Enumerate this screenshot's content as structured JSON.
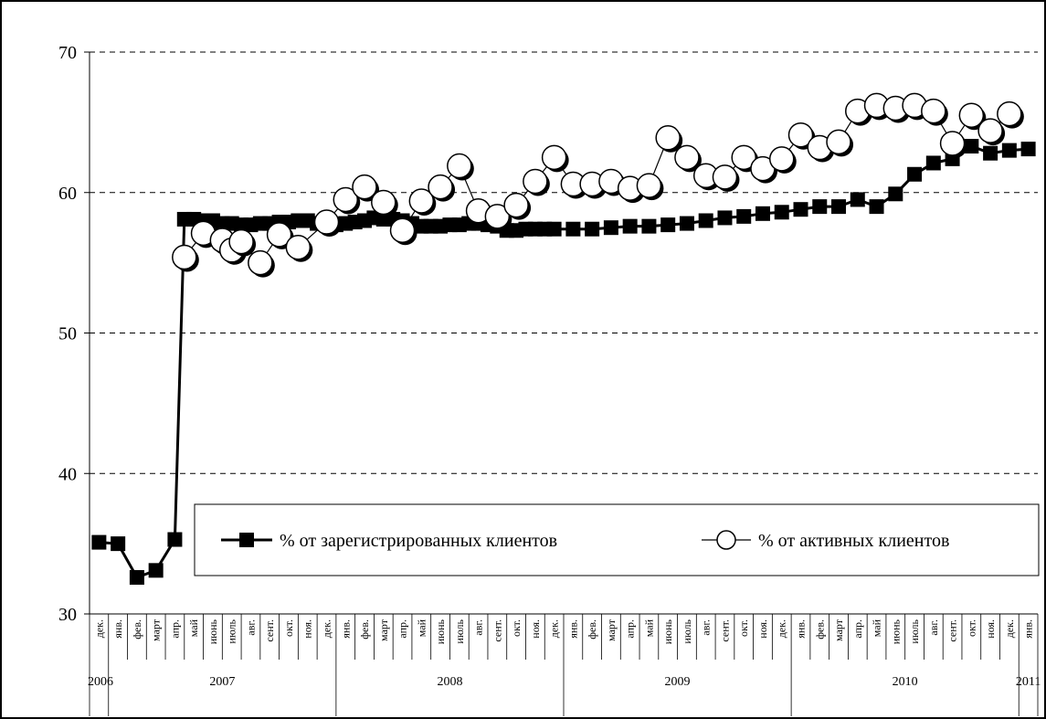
{
  "chart_data": {
    "type": "line",
    "title": "",
    "xlabel": "",
    "ylabel": "",
    "ylim": [
      30,
      70
    ],
    "y_ticks": [
      30,
      40,
      50,
      60,
      70
    ],
    "grid": "horizontal dashed",
    "legend_position": "bottom-center inside plot",
    "months": [
      "дек.",
      "янв.",
      "фев.",
      "март",
      "апр.",
      "май",
      "июнь",
      "июль",
      "авг.",
      "сент.",
      "окт.",
      "ноя.",
      "дек.",
      "янв.",
      "фев.",
      "март",
      "апр.",
      "май",
      "июнь",
      "июль",
      "авг.",
      "сент.",
      "окт.",
      "ноя.",
      "дек.",
      "янв.",
      "фев.",
      "март",
      "апр.",
      "май",
      "июнь",
      "июль",
      "авг.",
      "сент.",
      "окт.",
      "ноя.",
      "дек.",
      "янв.",
      "фев.",
      "март",
      "апр.",
      "май",
      "июнь",
      "июль",
      "авг.",
      "сент.",
      "окт.",
      "ноя.",
      "дек.",
      "янв."
    ],
    "years": [
      {
        "label": "2006",
        "start": 0,
        "end": 1
      },
      {
        "label": "2007",
        "start": 1,
        "end": 13
      },
      {
        "label": "2008",
        "start": 13,
        "end": 25
      },
      {
        "label": "2009",
        "start": 25,
        "end": 37
      },
      {
        "label": "2010",
        "start": 37,
        "end": 49
      },
      {
        "label": "2011",
        "start": 49,
        "end": 50
      }
    ],
    "series": [
      {
        "name": "% от зарегистрированных клиентов",
        "marker": "filled-square",
        "color": "#000000",
        "points": [
          [
            0,
            35.1
          ],
          [
            1,
            35.0
          ],
          [
            2,
            32.6
          ],
          [
            3,
            33.1
          ],
          [
            4,
            35.3
          ],
          [
            4.5,
            58.1
          ],
          [
            5,
            58.1
          ],
          [
            5.5,
            58.0
          ],
          [
            6,
            58.0
          ],
          [
            6.5,
            57.8
          ],
          [
            7,
            57.8
          ],
          [
            7.5,
            57.7
          ],
          [
            8,
            57.7
          ],
          [
            8.5,
            57.8
          ],
          [
            9,
            57.8
          ],
          [
            9.5,
            57.9
          ],
          [
            10,
            57.9
          ],
          [
            10.5,
            58.0
          ],
          [
            11,
            58.0
          ],
          [
            11.5,
            57.8
          ],
          [
            12,
            57.8
          ],
          [
            12.5,
            57.7
          ],
          [
            13,
            57.8
          ],
          [
            13.5,
            57.9
          ],
          [
            14,
            58.0
          ],
          [
            14.5,
            58.2
          ],
          [
            15,
            58.1
          ],
          [
            15.5,
            58.1
          ],
          [
            16,
            58.0
          ],
          [
            16.5,
            57.8
          ],
          [
            17,
            57.6
          ],
          [
            17.5,
            57.6
          ],
          [
            18,
            57.6
          ],
          [
            18.5,
            57.7
          ],
          [
            19,
            57.7
          ],
          [
            19.5,
            57.8
          ],
          [
            20,
            57.8
          ],
          [
            20.5,
            57.7
          ],
          [
            21,
            57.6
          ],
          [
            21.5,
            57.3
          ],
          [
            22,
            57.3
          ],
          [
            22.5,
            57.4
          ],
          [
            23,
            57.4
          ],
          [
            23.5,
            57.4
          ],
          [
            24,
            57.4
          ],
          [
            25,
            57.4
          ],
          [
            26,
            57.4
          ],
          [
            27,
            57.5
          ],
          [
            28,
            57.6
          ],
          [
            29,
            57.6
          ],
          [
            30,
            57.7
          ],
          [
            31,
            57.8
          ],
          [
            32,
            58.0
          ],
          [
            33,
            58.2
          ],
          [
            34,
            58.3
          ],
          [
            35,
            58.5
          ],
          [
            36,
            58.6
          ],
          [
            37,
            58.8
          ],
          [
            38,
            59.0
          ],
          [
            39,
            59.0
          ],
          [
            40,
            59.5
          ],
          [
            41,
            59.0
          ],
          [
            42,
            59.9
          ],
          [
            43,
            61.3
          ],
          [
            44,
            62.1
          ],
          [
            45,
            62.4
          ],
          [
            46,
            63.3
          ],
          [
            47,
            62.8
          ],
          [
            48,
            63.0
          ],
          [
            49,
            63.1
          ]
        ]
      },
      {
        "name": "% от активных клиентов",
        "marker": "open-circle",
        "color": "#000000",
        "points": [
          [
            4.5,
            55.4
          ],
          [
            5.5,
            57.1
          ],
          [
            6.5,
            56.6
          ],
          [
            7,
            55.9
          ],
          [
            7.5,
            56.5
          ],
          [
            8.5,
            55.0
          ],
          [
            9.5,
            57.0
          ],
          [
            10.5,
            56.1
          ],
          [
            12,
            57.9
          ],
          [
            13,
            59.5
          ],
          [
            14,
            60.4
          ],
          [
            15,
            59.3
          ],
          [
            16,
            57.3
          ],
          [
            17,
            59.4
          ],
          [
            18,
            60.4
          ],
          [
            19,
            61.9
          ],
          [
            20,
            58.7
          ],
          [
            21,
            58.3
          ],
          [
            22,
            59.1
          ],
          [
            23,
            60.8
          ],
          [
            24,
            62.5
          ],
          [
            25,
            60.6
          ],
          [
            26,
            60.6
          ],
          [
            27,
            60.8
          ],
          [
            28,
            60.3
          ],
          [
            29,
            60.5
          ],
          [
            30,
            63.9
          ],
          [
            31,
            62.5
          ],
          [
            32,
            61.2
          ],
          [
            33,
            61.1
          ],
          [
            34,
            62.5
          ],
          [
            35,
            61.7
          ],
          [
            36,
            62.4
          ],
          [
            37,
            64.1
          ],
          [
            38,
            63.2
          ],
          [
            39,
            63.6
          ],
          [
            40,
            65.8
          ],
          [
            41,
            66.2
          ],
          [
            42,
            66.0
          ],
          [
            43,
            66.2
          ],
          [
            44,
            65.8
          ],
          [
            45,
            63.5
          ],
          [
            46,
            65.5
          ],
          [
            47,
            64.4
          ],
          [
            48,
            65.6
          ]
        ]
      }
    ]
  }
}
